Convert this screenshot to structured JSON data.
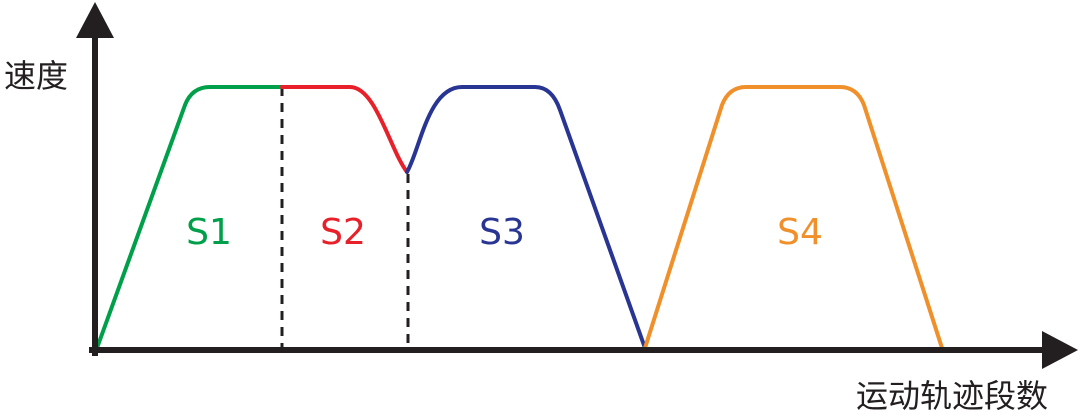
{
  "axes": {
    "y_label": "速度",
    "x_label": "运动轨迹段数"
  },
  "segments": [
    {
      "label": "S1"
    },
    {
      "label": "S2"
    },
    {
      "label": "S3"
    },
    {
      "label": "S4"
    }
  ]
}
